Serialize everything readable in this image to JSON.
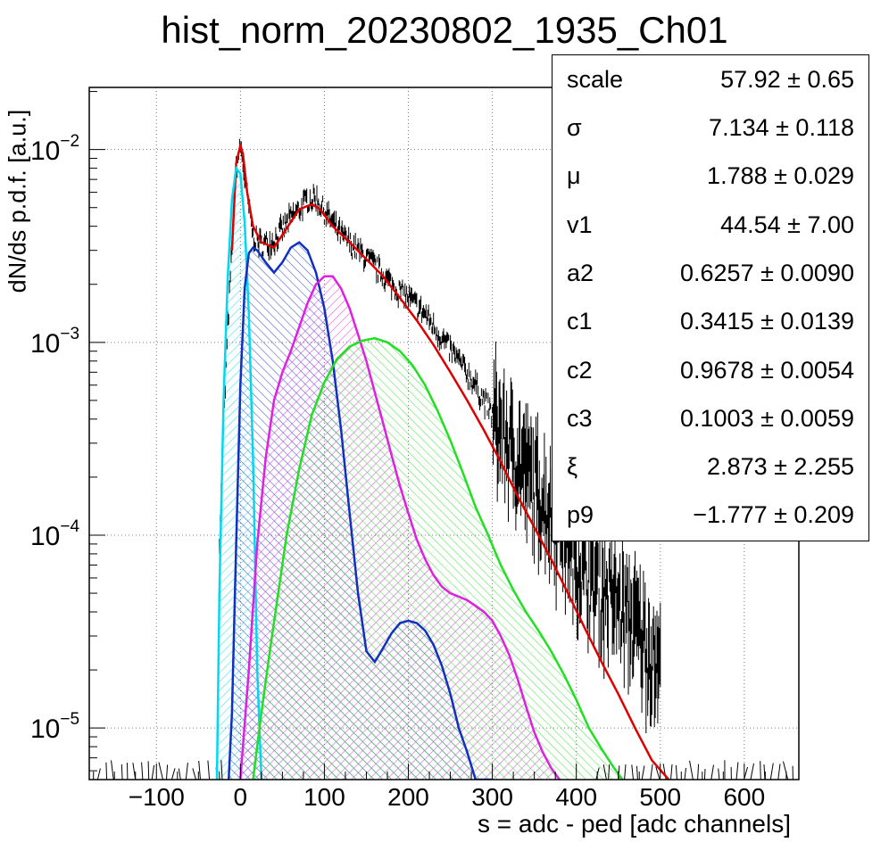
{
  "chart_data": {
    "type": "line",
    "title": "hist_norm_20230802_1935_Ch01",
    "xlabel": "s = adc - ped [adc channels]",
    "ylabel": "dN/ds p.d.f. [a.u.]",
    "xlim": [
      -180,
      665
    ],
    "ylim": [
      5.4e-06,
      0.021
    ],
    "yscale": "log",
    "grid": true,
    "x_ticks": [
      "−100",
      "0",
      "100",
      "200",
      "300",
      "400",
      "500",
      "600"
    ],
    "x_tick_values": [
      -100,
      0,
      100,
      200,
      300,
      400,
      500,
      600
    ],
    "y_ticks": [
      {
        "base": "10",
        "exp": "−2",
        "value": 0.01
      },
      {
        "base": "10",
        "exp": "−3",
        "value": 0.001
      },
      {
        "base": "10",
        "exp": "−4",
        "value": 0.0001
      },
      {
        "base": "10",
        "exp": "−5",
        "value": 1e-05
      }
    ],
    "series": [
      {
        "color": "#000000",
        "style": "histogram",
        "x": [
          -25,
          -15,
          -5,
          0,
          5,
          15,
          25,
          40,
          60,
          80,
          90,
          100,
          120,
          140,
          160,
          180,
          200,
          220,
          240,
          260,
          280,
          300,
          320,
          340,
          360,
          380,
          400,
          420,
          440,
          460,
          480,
          500
        ],
        "values": [
          0.0001,
          0.0012,
          0.008,
          0.0105,
          0.007,
          0.0036,
          0.0032,
          0.0034,
          0.0044,
          0.0055,
          0.0056,
          0.0048,
          0.0036,
          0.003,
          0.0025,
          0.002,
          0.0017,
          0.0014,
          0.00105,
          0.0008,
          0.0006,
          0.00042,
          0.0003,
          0.00022,
          0.00016,
          0.00012,
          8e-05,
          6e-05,
          5e-05,
          4e-05,
          3e-05,
          2e-05
        ]
      },
      {
        "color": "#dd0000",
        "style": "line",
        "x": [
          -10,
          -5,
          0,
          3,
          8,
          15,
          25,
          40,
          55,
          70,
          85,
          95,
          110,
          130,
          150,
          170,
          190,
          210,
          230,
          250,
          270,
          290,
          310,
          330,
          350,
          370,
          390,
          410,
          430,
          450,
          470,
          490,
          510
        ],
        "values": [
          0.003,
          0.0085,
          0.0105,
          0.0095,
          0.006,
          0.004,
          0.0033,
          0.0031,
          0.0039,
          0.0049,
          0.0052,
          0.0049,
          0.004,
          0.0033,
          0.0027,
          0.0022,
          0.0017,
          0.0013,
          0.00097,
          0.0007,
          0.0005,
          0.00035,
          0.00024,
          0.00016,
          0.00011,
          7.5e-05,
          5e-05,
          3.3e-05,
          2.2e-05,
          1.5e-05,
          1e-05,
          6.8e-06,
          5.4e-06
        ]
      },
      {
        "color": "#00d8f0",
        "style": "filled",
        "x": [
          -28,
          -25,
          -20,
          -15,
          -10,
          -5,
          0,
          5,
          10,
          15,
          20,
          25
        ],
        "values": [
          5.4e-06,
          5e-05,
          0.0005,
          0.0022,
          0.0055,
          0.008,
          0.0075,
          0.0042,
          0.0014,
          0.00025,
          2e-05,
          5.4e-06
        ]
      },
      {
        "color": "#1030c0",
        "style": "filled",
        "x": [
          -14,
          -10,
          -5,
          0,
          5,
          10,
          15,
          20,
          30,
          40,
          50,
          60,
          70,
          80,
          90,
          100,
          110,
          120,
          130,
          140,
          150,
          160,
          170,
          180,
          190,
          200,
          210,
          220,
          230,
          240,
          250,
          260,
          270,
          280,
          290,
          300
        ],
        "values": [
          5.4e-06,
          1.2e-05,
          9e-05,
          0.0006,
          0.0019,
          0.0029,
          0.0031,
          0.003,
          0.0026,
          0.0023,
          0.0026,
          0.0031,
          0.0033,
          0.003,
          0.0023,
          0.0015,
          0.0008,
          0.00035,
          0.00013,
          5e-05,
          2.5e-05,
          2.2e-05,
          2.6e-05,
          3.1e-05,
          3.5e-05,
          3.6e-05,
          3.5e-05,
          3.2e-05,
          2.7e-05,
          2.1e-05,
          1.5e-05,
          1e-05,
          7.5e-06,
          5.4e-06,
          5.4e-06,
          5.4e-06
        ]
      },
      {
        "color": "#e020e0",
        "style": "filled",
        "x": [
          0,
          10,
          20,
          30,
          40,
          50,
          60,
          70,
          80,
          90,
          100,
          110,
          120,
          130,
          140,
          150,
          160,
          170,
          180,
          190,
          200,
          210,
          220,
          230,
          240,
          250,
          260,
          270,
          280,
          290,
          300,
          310,
          320,
          330,
          340,
          350,
          360,
          370,
          380
        ],
        "values": [
          5.4e-06,
          2e-05,
          9e-05,
          0.00025,
          0.0005,
          0.0007,
          0.0009,
          0.0012,
          0.0016,
          0.002,
          0.0022,
          0.0022,
          0.0019,
          0.0015,
          0.0011,
          0.0008,
          0.00055,
          0.00038,
          0.00026,
          0.00018,
          0.00013,
          9.5e-05,
          7.5e-05,
          6.2e-05,
          5.4e-05,
          5e-05,
          4.8e-05,
          4.6e-05,
          4.3e-05,
          4e-05,
          3.6e-05,
          3e-05,
          2.4e-05,
          1.8e-05,
          1.3e-05,
          9.5e-06,
          7.5e-06,
          6.2e-06,
          5.4e-06
        ]
      },
      {
        "color": "#20e020",
        "style": "filled",
        "x": [
          15,
          25,
          35,
          45,
          55,
          70,
          85,
          100,
          115,
          130,
          145,
          160,
          175,
          190,
          205,
          220,
          235,
          250,
          265,
          280,
          295,
          310,
          325,
          340,
          355,
          370,
          385,
          400,
          415,
          430,
          445,
          455
        ],
        "values": [
          5.4e-06,
          1.2e-05,
          2.5e-05,
          5e-05,
          0.0001,
          0.00022,
          0.00042,
          0.00062,
          0.00082,
          0.00095,
          0.00102,
          0.00105,
          0.001,
          0.0009,
          0.00076,
          0.0006,
          0.00044,
          0.00031,
          0.00021,
          0.00014,
          0.0001,
          7e-05,
          5.2e-05,
          4e-05,
          3.2e-05,
          2.5e-05,
          1.9e-05,
          1.4e-05,
          1e-05,
          7.8e-06,
          6.2e-06,
          5.4e-06
        ]
      }
    ]
  },
  "stats": [
    {
      "name": "scale",
      "value": "57.92 ± 0.65"
    },
    {
      "name": "σ",
      "value": "7.134 ± 0.118"
    },
    {
      "name": "μ",
      "value": "1.788 ± 0.029"
    },
    {
      "name": "v1",
      "value": "44.54 ± 7.00"
    },
    {
      "name": "a2",
      "value": "0.6257 ± 0.0090"
    },
    {
      "name": "c1",
      "value": "0.3415 ± 0.0139"
    },
    {
      "name": "c2",
      "value": "0.9678 ± 0.0054"
    },
    {
      "name": "c3",
      "value": "0.1003 ± 0.0059"
    },
    {
      "name": "ξ",
      "value": "2.873 ± 2.255"
    },
    {
      "name": "p9",
      "value": "−1.777 ± 0.209"
    }
  ]
}
